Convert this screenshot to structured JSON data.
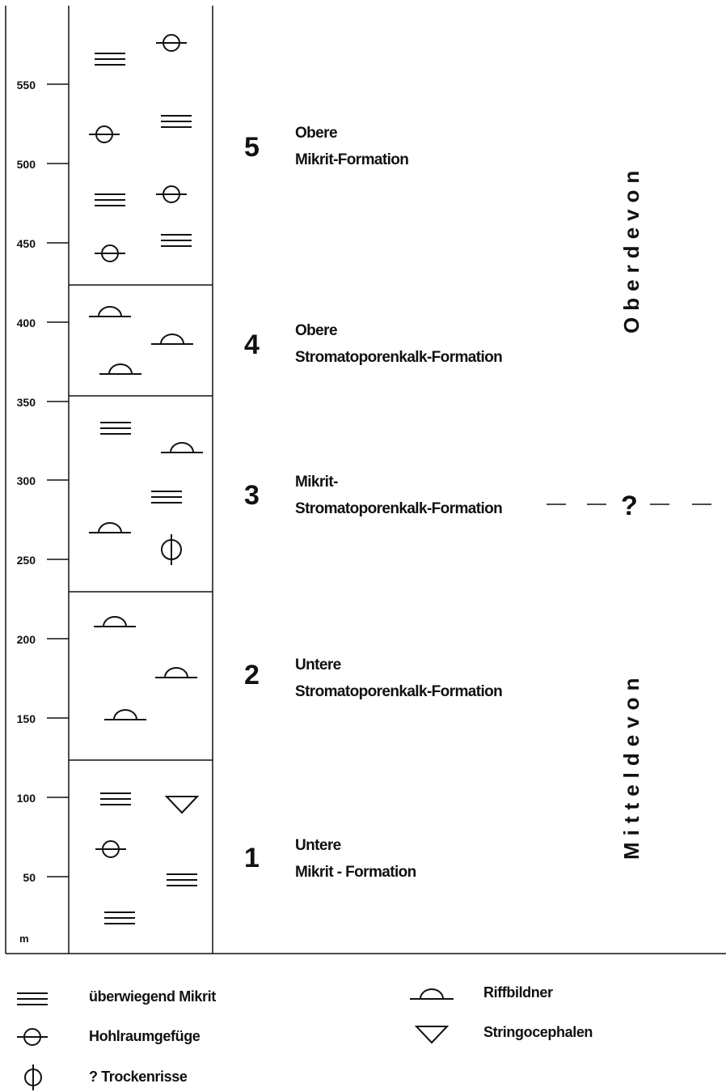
{
  "axis": {
    "unit": "m",
    "ticks": [
      "50",
      "100",
      "150",
      "200",
      "250",
      "300",
      "350",
      "400",
      "450",
      "500",
      "550"
    ]
  },
  "formations": [
    {
      "number": "1",
      "line1": "Untere",
      "line2": "Mikrit - Formation"
    },
    {
      "number": "2",
      "line1": "Untere",
      "line2": "Stromatoporenkalk-Formation"
    },
    {
      "number": "3",
      "line1": "Mikrit-",
      "line2": "Stromatoporenkalk-Formation"
    },
    {
      "number": "4",
      "line1": "Obere",
      "line2": "Stromatoporenkalk-Formation"
    },
    {
      "number": "5",
      "line1": "Obere",
      "line2": "Mikrit-Formation"
    }
  ],
  "periods": {
    "upper": "Oberdevon",
    "lower": "Mitteldevon",
    "boundary_mark": "?"
  },
  "legend": [
    {
      "icon": "mikrit-lines-icon",
      "label": "überwiegend Mikrit"
    },
    {
      "icon": "hohlraum-circle-icon",
      "label": "Hohlraumgefüge"
    },
    {
      "icon": "trockenrisse-phi-icon",
      "label": "? Trockenrisse"
    },
    {
      "icon": "riff-dome-icon",
      "label": "Riffbildner"
    },
    {
      "icon": "stringocephalen-triangle-icon",
      "label": "Stringocephalen"
    }
  ],
  "colors": {
    "ink": "#111111",
    "background": "#ffffff"
  }
}
